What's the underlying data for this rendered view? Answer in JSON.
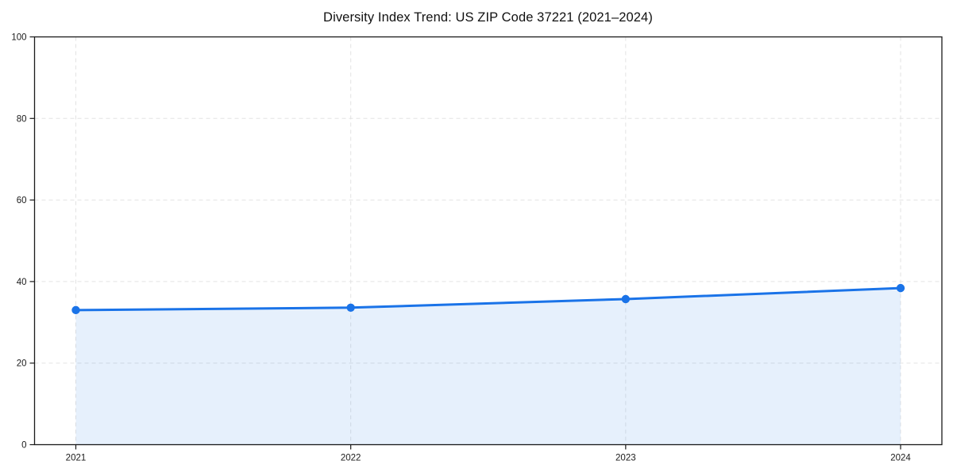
{
  "figure": {
    "title": "Diversity Index Trend: US ZIP Code 37221 (2021–2024)"
  },
  "chart_data": {
    "type": "area",
    "title": "Diversity Index Trend: US ZIP Code 37221 (2021–2024)",
    "categories": [
      "2021",
      "2022",
      "2023",
      "2024"
    ],
    "series": [
      {
        "name": "Diversity Index",
        "values": [
          33,
          33.6,
          35.7,
          38.4
        ]
      }
    ],
    "xlabel": "",
    "ylabel": "",
    "ylim": [
      0,
      100
    ],
    "yticks": [
      0,
      20,
      40,
      60,
      80,
      100
    ],
    "grid": "dashed, on both axes at tick positions",
    "legend": "none",
    "colors": {
      "line": "#1a73e8",
      "marker": "#1a73e8",
      "area_fill": "rgba(26,115,232,0.11)",
      "gridline": "#e3e3e3",
      "spine": "#1a1a1a",
      "tick_text": "#1a1a1a",
      "background": "#ffffff"
    }
  }
}
